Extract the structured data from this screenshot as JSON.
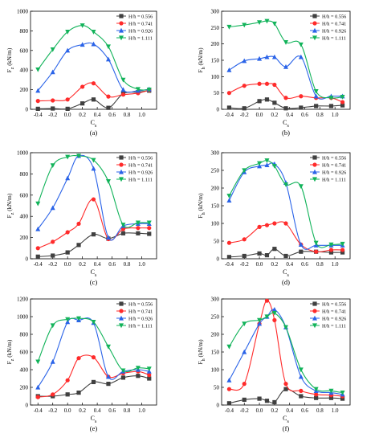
{
  "colors": {
    "H556": "#404040",
    "H741": "#ff2b2b",
    "H926": "#2a63e8",
    "H1111": "#12b35a"
  },
  "legend": [
    "H/h = 0.556",
    "H/h = 0.741",
    "H/h = 0.926",
    "H/h = 1.111"
  ],
  "chart_data": [
    {
      "type": "line",
      "panel": "(a)",
      "ylabel": "F_z (kN/m)",
      "xlabel": "C_s",
      "ylim": [
        0,
        1000
      ],
      "yticks": [
        0,
        200,
        400,
        600,
        800,
        1000
      ],
      "x": [
        -0.4,
        -0.2,
        0,
        0.2,
        0.35,
        0.55,
        0.75,
        0.95,
        1.1
      ],
      "xlim": [
        -0.5,
        1.2
      ],
      "xticks": [
        -0.4,
        -0.2,
        0,
        0.2,
        0.4,
        0.6,
        0.8,
        1.0
      ],
      "series": [
        {
          "name": "H/h = 0.556",
          "values": [
            5,
            8,
            5,
            60,
            100,
            15,
            160,
            175,
            190
          ]
        },
        {
          "name": "H/h = 0.741",
          "values": [
            85,
            90,
            100,
            230,
            265,
            130,
            150,
            165,
            195
          ]
        },
        {
          "name": "H/h = 0.926",
          "values": [
            190,
            380,
            600,
            660,
            665,
            510,
            200,
            190,
            205
          ]
        },
        {
          "name": "H/h = 1.111",
          "values": [
            405,
            610,
            790,
            855,
            790,
            640,
            300,
            205,
            200
          ]
        }
      ]
    },
    {
      "type": "line",
      "panel": "(b)",
      "ylabel": "F_h (kN/m)",
      "xlabel": "C_s",
      "ylim": [
        0,
        300
      ],
      "yticks": [
        0,
        50,
        100,
        150,
        200,
        250,
        300
      ],
      "x": [
        -0.4,
        -0.2,
        0,
        0.1,
        0.2,
        0.35,
        0.55,
        0.75,
        0.95,
        1.1
      ],
      "xlim": [
        -0.5,
        1.2
      ],
      "xticks": [
        -0.4,
        -0.2,
        0,
        0.2,
        0.4,
        0.6,
        0.8,
        1.0
      ],
      "series": [
        {
          "name": "H/h = 0.556",
          "values": [
            5,
            3,
            25,
            30,
            20,
            3,
            5,
            10,
            10,
            12
          ]
        },
        {
          "name": "H/h = 0.741",
          "values": [
            50,
            72,
            78,
            78,
            75,
            35,
            40,
            35,
            35,
            22
          ]
        },
        {
          "name": "H/h = 0.926",
          "values": [
            120,
            148,
            155,
            160,
            160,
            130,
            160,
            40,
            40,
            40
          ]
        },
        {
          "name": "H/h = 1.111",
          "values": [
            252,
            258,
            266,
            270,
            262,
            205,
            198,
            55,
            35,
            38
          ]
        }
      ]
    },
    {
      "type": "line",
      "panel": "(c)",
      "ylabel": "F_z (kN/m)",
      "xlabel": "C_s",
      "ylim": [
        0,
        1000
      ],
      "yticks": [
        0,
        200,
        400,
        600,
        800,
        1000
      ],
      "x": [
        -0.4,
        -0.2,
        0,
        0.15,
        0.35,
        0.55,
        0.75,
        0.95,
        1.1
      ],
      "xlim": [
        -0.5,
        1.2
      ],
      "xticks": [
        -0.4,
        -0.2,
        0,
        0.2,
        0.4,
        0.6,
        0.8,
        1.0
      ],
      "series": [
        {
          "name": "H/h = 0.556",
          "values": [
            20,
            30,
            60,
            130,
            230,
            190,
            240,
            240,
            235
          ]
        },
        {
          "name": "H/h = 0.741",
          "values": [
            100,
            160,
            250,
            330,
            560,
            185,
            280,
            290,
            290
          ]
        },
        {
          "name": "H/h = 0.926",
          "values": [
            280,
            480,
            760,
            970,
            850,
            200,
            310,
            330,
            330
          ]
        },
        {
          "name": "H/h = 1.111",
          "values": [
            520,
            880,
            960,
            970,
            930,
            730,
            320,
            340,
            340
          ]
        }
      ]
    },
    {
      "type": "line",
      "panel": "(d)",
      "ylabel": "F_h (kN/m)",
      "xlabel": "C_s",
      "ylim": [
        0,
        300
      ],
      "yticks": [
        0,
        50,
        100,
        150,
        200,
        250,
        300
      ],
      "x": [
        -0.4,
        -0.2,
        0,
        0.1,
        0.2,
        0.35,
        0.55,
        0.75,
        0.95,
        1.1
      ],
      "xlim": [
        -0.5,
        1.2
      ],
      "xticks": [
        -0.4,
        -0.2,
        0,
        0.2,
        0.4,
        0.6,
        0.8,
        1.0
      ],
      "series": [
        {
          "name": "H/h = 0.556",
          "values": [
            5,
            8,
            15,
            10,
            28,
            8,
            20,
            20,
            18,
            18
          ]
        },
        {
          "name": "H/h = 0.741",
          "values": [
            45,
            55,
            90,
            95,
            100,
            100,
            40,
            20,
            25,
            25
          ]
        },
        {
          "name": "H/h = 0.926",
          "values": [
            165,
            245,
            262,
            265,
            268,
            215,
            40,
            38,
            38,
            38
          ]
        },
        {
          "name": "H/h = 1.111",
          "values": [
            178,
            250,
            270,
            278,
            262,
            210,
            205,
            45,
            40,
            42
          ]
        }
      ]
    },
    {
      "type": "line",
      "panel": "(e)",
      "ylabel": "F_z (kN/m)",
      "xlabel": "C_s",
      "ylim": [
        0,
        1200
      ],
      "yticks": [
        0,
        200,
        400,
        600,
        800,
        1000,
        1200
      ],
      "x": [
        -0.4,
        -0.2,
        0,
        0.15,
        0.35,
        0.55,
        0.75,
        0.95,
        1.1
      ],
      "xlim": [
        -0.5,
        1.2
      ],
      "xticks": [
        -0.4,
        -0.2,
        0,
        0.2,
        0.4,
        0.6,
        0.8,
        1.0
      ],
      "series": [
        {
          "name": "H/h = 0.556",
          "values": [
            100,
            100,
            120,
            140,
            260,
            240,
            310,
            330,
            300
          ]
        },
        {
          "name": "H/h = 0.741",
          "values": [
            90,
            120,
            280,
            530,
            540,
            320,
            360,
            380,
            340
          ]
        },
        {
          "name": "H/h = 0.926",
          "values": [
            200,
            490,
            940,
            960,
            930,
            320,
            380,
            400,
            380
          ]
        },
        {
          "name": "H/h = 1.111",
          "values": [
            490,
            900,
            970,
            980,
            940,
            660,
            390,
            420,
            410
          ]
        }
      ]
    },
    {
      "type": "line",
      "panel": "(f)",
      "ylabel": "F_h (kN/m)",
      "xlabel": "C_s",
      "ylim": [
        0,
        300
      ],
      "yticks": [
        0,
        50,
        100,
        150,
        200,
        250,
        300
      ],
      "x": [
        -0.4,
        -0.2,
        0,
        0.1,
        0.2,
        0.35,
        0.55,
        0.75,
        0.95,
        1.1
      ],
      "xlim": [
        -0.5,
        1.2
      ],
      "xticks": [
        -0.4,
        -0.2,
        0,
        0.2,
        0.4,
        0.6,
        0.8,
        1.0
      ],
      "series": [
        {
          "name": "H/h = 0.556",
          "values": [
            5,
            15,
            18,
            12,
            8,
            45,
            25,
            20,
            20,
            18
          ]
        },
        {
          "name": "H/h = 0.741",
          "values": [
            45,
            60,
            230,
            295,
            240,
            60,
            40,
            30,
            28,
            25
          ]
        },
        {
          "name": "H/h = 0.926",
          "values": [
            70,
            150,
            230,
            250,
            270,
            220,
            80,
            40,
            35,
            30
          ]
        },
        {
          "name": "H/h = 1.111",
          "values": [
            165,
            230,
            240,
            250,
            260,
            220,
            100,
            45,
            40,
            35
          ]
        }
      ]
    }
  ]
}
